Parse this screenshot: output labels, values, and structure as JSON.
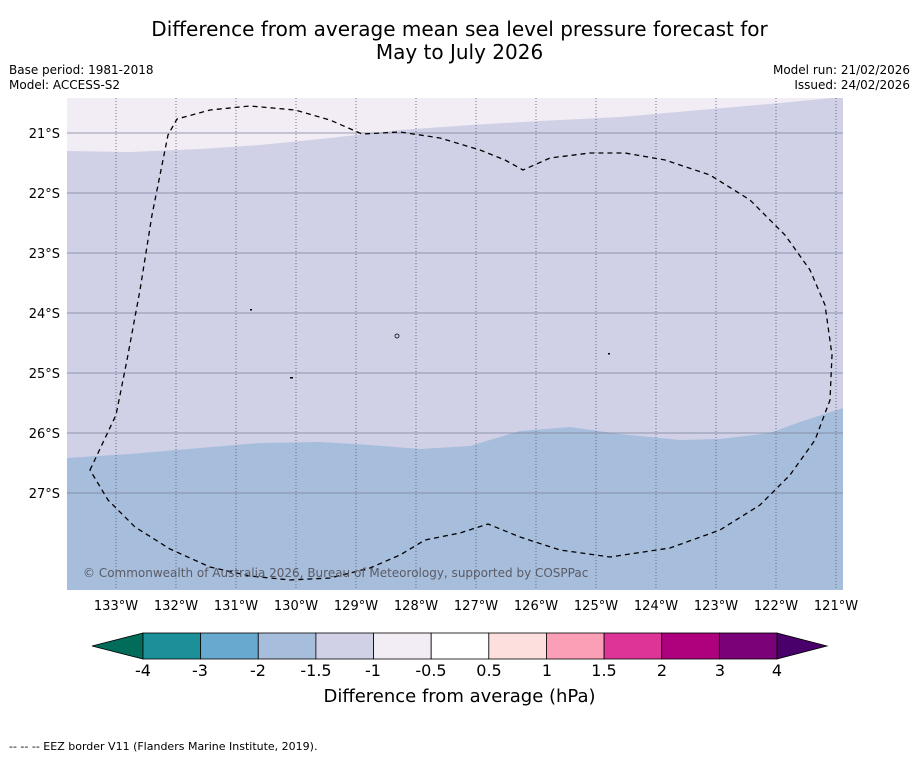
{
  "title": {
    "line1": "Difference from average mean sea level pressure forecast for",
    "line2": "May to July 2026"
  },
  "meta": {
    "base_period": "Base period: 1981-2018",
    "model": "Model: ACCESS-S2",
    "model_run": "Model run: 21/02/2026",
    "issued": "Issued: 24/02/2026"
  },
  "map": {
    "lat_labels": [
      "21°S",
      "22°S",
      "23°S",
      "24°S",
      "25°S",
      "26°S",
      "27°S"
    ],
    "lon_labels": [
      "133°W",
      "132°W",
      "131°W",
      "130°W",
      "129°W",
      "128°W",
      "127°W",
      "126°W",
      "125°W",
      "124°W",
      "123°W",
      "122°W",
      "121°W"
    ],
    "copyright": "© Commonwealth of Australia 2026, Bureau of Meteorology, supported by COSPPac",
    "colors": {
      "band_top": "#f2ecf5",
      "band_mid": "#d0d1e6",
      "band_low": "#a6bddb"
    }
  },
  "colorbar": {
    "title": "Difference from average (hPa)",
    "ticks": [
      "-4",
      "-3",
      "-2",
      "-1.5",
      "-1",
      "-0.5",
      "0.5",
      "1",
      "1.5",
      "2",
      "3",
      "4"
    ],
    "colors": [
      "#016c59",
      "#1c9099",
      "#67a9cf",
      "#a6bddb",
      "#d0d1e6",
      "#f2ecf5",
      "#ffffff",
      "#fde0dd",
      "#fa9fb5",
      "#dd3497",
      "#ae017e",
      "#7a0177",
      "#49006a"
    ]
  },
  "footnote": "-- -- -- EEZ border V11 (Flanders Marine Institute, 2019)."
}
